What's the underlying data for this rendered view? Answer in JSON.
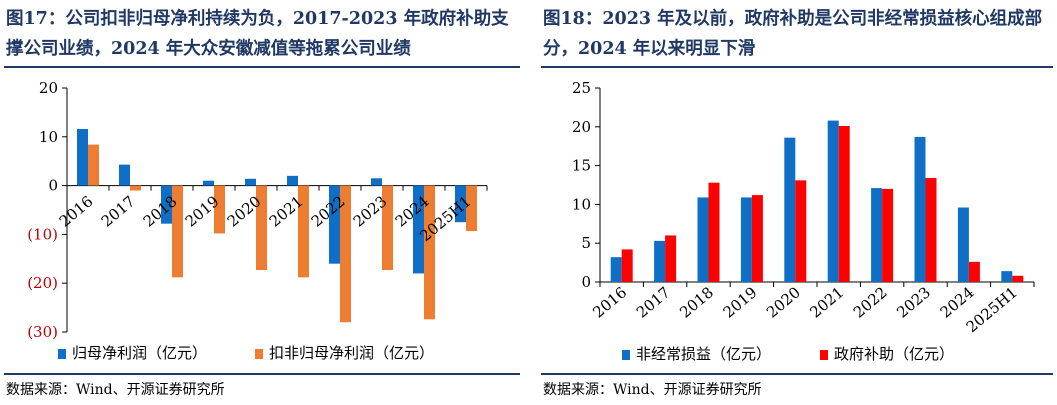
{
  "left": {
    "title": "图17：公司扣非归母净利持续为负，2017-2023 年政府补助支撑公司业绩，2024 年大众安徽减值等拖累公司业绩",
    "source": "数据来源：Wind、开源证券研究所"
  },
  "right": {
    "title": "图18：2023 年及以前，政府补助是公司非经常损益核心组成部分，2024 年以来明显下滑",
    "source": "数据来源：Wind、开源证券研究所"
  },
  "chart_data": [
    {
      "type": "bar",
      "categories": [
        "2016",
        "2017",
        "2018",
        "2019",
        "2020",
        "2021",
        "2022",
        "2023",
        "2024",
        "2025H1"
      ],
      "series": [
        {
          "name": "归母净利润（亿元）",
          "color": "#0f6fc6",
          "values": [
            11.6,
            4.3,
            -7.8,
            1.0,
            1.4,
            2.0,
            -16.0,
            1.5,
            -18.0,
            -7.5
          ]
        },
        {
          "name": "扣非归母净利润（亿元）",
          "color": "#ed7d31",
          "values": [
            8.4,
            -1.0,
            -18.8,
            -9.8,
            -17.3,
            -18.8,
            -28.0,
            -17.3,
            -27.4,
            -9.3
          ]
        }
      ],
      "yticks": [
        "20",
        "10",
        "0",
        "(10)",
        "(20)",
        "(30)"
      ],
      "ytick_values": [
        20,
        10,
        0,
        -10,
        -20,
        -30
      ],
      "ylim": [
        -30,
        20
      ],
      "negative_tick_color": "#c00000",
      "legend_position": "bottom"
    },
    {
      "type": "bar",
      "categories": [
        "2016",
        "2017",
        "2018",
        "2019",
        "2020",
        "2021",
        "2022",
        "2023",
        "2024",
        "2025H1"
      ],
      "series": [
        {
          "name": "非经常损益（亿元）",
          "color": "#0f6fc6",
          "values": [
            3.2,
            5.3,
            10.9,
            10.9,
            18.6,
            20.8,
            12.1,
            18.7,
            9.6,
            1.4
          ]
        },
        {
          "name": "政府补助（亿元）",
          "color": "#ff0000",
          "values": [
            4.2,
            6.0,
            12.8,
            11.2,
            13.1,
            20.1,
            12.0,
            13.4,
            2.6,
            0.8
          ]
        }
      ],
      "yticks": [
        "25",
        "20",
        "15",
        "10",
        "5",
        "0"
      ],
      "ytick_values": [
        25,
        20,
        15,
        10,
        5,
        0
      ],
      "ylim": [
        0,
        25
      ],
      "legend_position": "bottom"
    }
  ]
}
